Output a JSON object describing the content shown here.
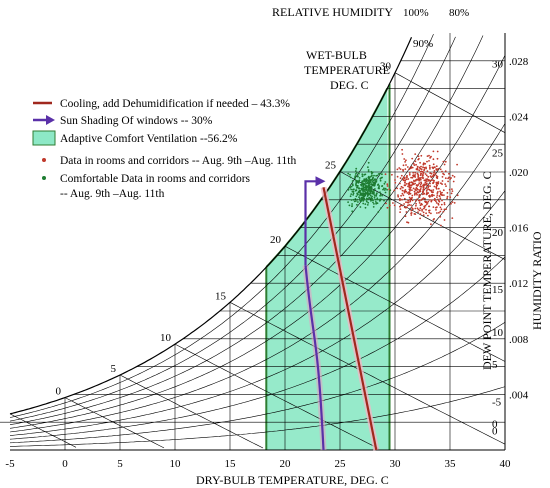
{
  "chart_data": {
    "type": "psychrometric",
    "title": "",
    "top_label": "RELATIVE HUMIDITY",
    "xlabel": "DRY-BULB TEMPERATURE, DEG. C",
    "ylabel": "HUMIDITY RATIO",
    "dewpoint_label": "DEW POINT TEMPERATURE, DEG. C",
    "wetbulb_label": [
      "WET-BULB",
      "TEMPERATURE",
      "DEG. C"
    ],
    "x_range": [
      -5,
      40
    ],
    "y_range": [
      0,
      0.03
    ],
    "x_ticks": [
      "-5",
      "0",
      "5",
      "10",
      "15",
      "20",
      "25",
      "30",
      "35",
      "40"
    ],
    "humidity_ratio_ticks": [
      ".004",
      ".008",
      ".012",
      ".016",
      ".020",
      ".024",
      ".028"
    ],
    "dewpoint_ticks": [
      "0",
      "-5",
      "0",
      "5",
      "10",
      "15",
      "20",
      "25",
      "30"
    ],
    "wetbulb_ticks": [
      "0",
      "5",
      "10",
      "15",
      "20",
      "25",
      "30"
    ],
    "rh_labels": [
      "100%",
      "80%",
      "90%"
    ],
    "grid": true,
    "legend": [
      {
        "label": "Cooling, add Dehumidification if needed – 43.3%",
        "symbol": "line",
        "color": "#a0281e"
      },
      {
        "label": "Sun Shading Of windows -- 30%",
        "symbol": "arrow",
        "color": "#5a30a8"
      },
      {
        "label": "Adaptive Comfort Ventilation --56.2%",
        "symbol": "box",
        "color": "#8de8c6"
      },
      {
        "label": "Data in rooms and corridors -- Aug. 9th –Aug. 11th",
        "symbol": "dot",
        "color": "#c0392b"
      },
      {
        "label": "Comfortable Data in rooms and corridors",
        "label2": "-- Aug. 9th –Aug. 11th",
        "symbol": "dot",
        "color": "#1e7d32"
      }
    ],
    "zones": {
      "adaptive_comfort_ventilation": {
        "percent": 56.2,
        "dry_bulb_range": [
          18.3,
          29.5
        ],
        "color": "#8de8c6"
      },
      "cooling_dehumidification": {
        "percent": 43.3,
        "line": [
          [
            23.5,
            0.0189
          ],
          [
            28.3,
            0
          ]
        ],
        "color": "#a0281e"
      },
      "sun_shading": {
        "percent": 30,
        "line": [
          [
            23.5,
            0.0189
          ],
          [
            23.5,
            0
          ]
        ],
        "color": "#5a30a8"
      }
    },
    "series": [
      {
        "name": "Data in rooms and corridors -- Aug. 9th –Aug. 11th",
        "type": "scatter",
        "color": "#c0392b",
        "db_range": [
          28.5,
          36.5
        ],
        "w_range": [
          0.0155,
          0.0222
        ]
      },
      {
        "name": "Comfortable Data in rooms and corridors -- Aug. 9th –Aug. 11th",
        "type": "scatter",
        "color": "#1e7d32",
        "db_range": [
          25.0,
          30.0
        ],
        "w_range": [
          0.0168,
          0.0208
        ]
      }
    ]
  }
}
